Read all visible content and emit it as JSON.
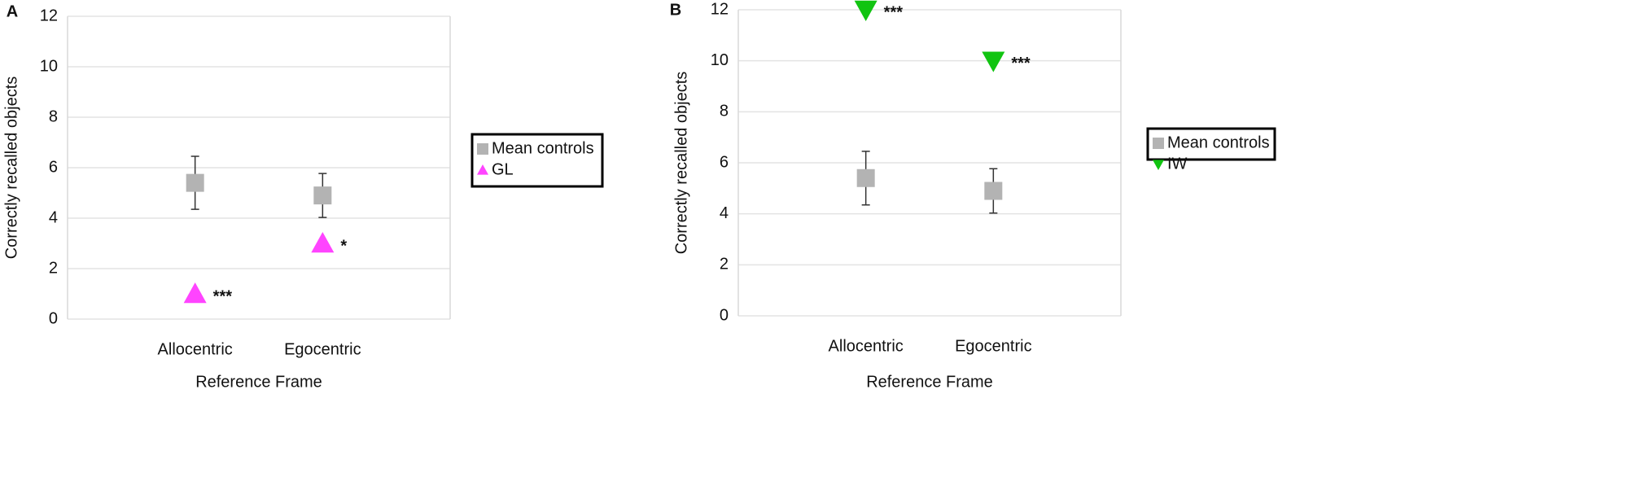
{
  "chart_data": [
    {
      "type": "scatter",
      "panel": "A",
      "x_label": "Reference Frame",
      "y_label": "Correctly recalled objects",
      "categories": [
        "Allocentric",
        "Egocentric"
      ],
      "series": [
        {
          "name": "Mean controls",
          "color": "#b3b3b3",
          "marker": "square",
          "values": [
            5.4,
            4.9
          ],
          "errors": [
            1.05,
            0.87
          ]
        },
        {
          "name": "GL",
          "color": "#ff44ff",
          "marker": "triangle-up",
          "values": [
            1,
            3
          ],
          "significance": [
            "***",
            "*"
          ]
        }
      ],
      "ylim": [
        0,
        12
      ],
      "yticks": [
        0,
        2,
        4,
        6,
        8,
        10,
        12
      ],
      "grid": true,
      "legend": "right"
    },
    {
      "type": "scatter",
      "panel": "B",
      "x_label": "Reference Frame",
      "y_label": "Correctly recalled objects",
      "categories": [
        "Allocentric",
        "Egocentric"
      ],
      "series": [
        {
          "name": "Mean controls",
          "color": "#b3b3b3",
          "marker": "square",
          "values": [
            5.4,
            4.9
          ],
          "errors": [
            1.05,
            0.87
          ]
        },
        {
          "name": "IW",
          "color": "#11c411",
          "marker": "triangle-down",
          "values": [
            12,
            10
          ],
          "significance": [
            "***",
            "***"
          ]
        }
      ],
      "ylim": [
        0,
        12
      ],
      "yticks": [
        0,
        2,
        4,
        6,
        8,
        10,
        12
      ],
      "grid": true,
      "legend": "right"
    }
  ]
}
